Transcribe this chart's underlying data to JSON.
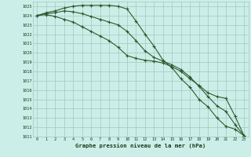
{
  "xlabel": "Graphe pression niveau de la mer (hPa)",
  "background_color": "#cceee8",
  "grid_color": "#99ccbb",
  "line_color": "#2d5a2d",
  "xlim": [
    -0.5,
    23.5
  ],
  "ylim": [
    1011,
    1025.5
  ],
  "yticks": [
    1011,
    1012,
    1013,
    1014,
    1015,
    1016,
    1017,
    1018,
    1019,
    1020,
    1021,
    1022,
    1023,
    1024,
    1025
  ],
  "xticks": [
    0,
    1,
    2,
    3,
    4,
    5,
    6,
    7,
    8,
    9,
    10,
    11,
    12,
    13,
    14,
    15,
    16,
    17,
    18,
    19,
    20,
    21,
    22,
    23
  ],
  "series": [
    [
      1024.0,
      1024.3,
      1024.5,
      1024.8,
      1025.0,
      1025.1,
      1025.1,
      1025.1,
      1025.1,
      1025.0,
      1024.7,
      1023.4,
      1022.0,
      1020.7,
      1019.2,
      1018.4,
      1017.2,
      1016.3,
      1015.0,
      1014.2,
      1013.0,
      1012.1,
      1011.8,
      1011.1
    ],
    [
      1024.0,
      1024.2,
      1024.3,
      1024.5,
      1024.4,
      1024.2,
      1023.9,
      1023.6,
      1023.3,
      1023.0,
      1022.3,
      1021.3,
      1020.2,
      1019.5,
      1019.1,
      1018.7,
      1018.2,
      1017.4,
      1016.4,
      1015.3,
      1014.3,
      1013.7,
      1012.3,
      1011.1
    ],
    [
      1024.0,
      1024.1,
      1023.9,
      1023.6,
      1023.3,
      1022.8,
      1022.3,
      1021.8,
      1021.3,
      1020.6,
      1019.7,
      1019.4,
      1019.2,
      1019.1,
      1018.9,
      1018.5,
      1018.0,
      1017.2,
      1016.5,
      1015.7,
      1015.3,
      1015.1,
      1013.2,
      1011.1
    ]
  ]
}
